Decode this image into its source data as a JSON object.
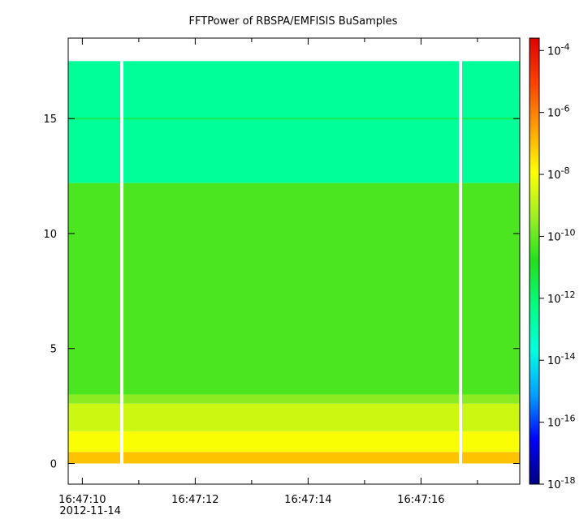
{
  "chart_data": {
    "type": "heatmap",
    "title": "FFTPower of RBSPA/EMFISIS  BuSamples",
    "xlabel": "",
    "ylabel": "",
    "x_range_seconds_past_16_47": [
      9.75,
      17.75
    ],
    "x_ticks": [
      {
        "value": 10,
        "label": "16:47:10",
        "sublabel": "2012-11-14"
      },
      {
        "value": 12,
        "label": "16:47:12"
      },
      {
        "value": 14,
        "label": "16:47:14"
      },
      {
        "value": 16,
        "label": "16:47:16"
      }
    ],
    "x_minor_ticks": [
      11,
      13,
      15,
      17
    ],
    "ylim": [
      -0.9,
      18.5
    ],
    "y_ticks": [
      0,
      5,
      10,
      15
    ],
    "data_extent": {
      "x": [
        9.75,
        17.75
      ],
      "y": [
        0,
        17.5
      ]
    },
    "data_gaps_x": [
      10.7,
      16.7
    ],
    "frequency_bands": [
      {
        "y_from": 0.0,
        "y_to": 0.5,
        "log10_power": -7.0
      },
      {
        "y_from": 0.5,
        "y_to": 1.4,
        "log10_power": -8.0
      },
      {
        "y_from": 1.4,
        "y_to": 2.6,
        "log10_power": -8.7
      },
      {
        "y_from": 2.6,
        "y_to": 3.0,
        "log10_power": -9.6
      },
      {
        "y_from": 3.0,
        "y_to": 12.2,
        "log10_power": -10.3
      },
      {
        "y_from": 12.2,
        "y_to": 17.5,
        "log10_power": -12.6
      }
    ],
    "line_features": [
      {
        "y": 15.0,
        "log10_power": -11.5
      }
    ],
    "colorbar": {
      "scale": "log",
      "range_log10": [
        -18,
        -3.6
      ],
      "tick_labels": [
        "10-4",
        "10-6",
        "10-8",
        "10-10",
        "10-12",
        "10-14",
        "10-16",
        "10-18"
      ],
      "tick_values_log10": [
        -4,
        -6,
        -8,
        -10,
        -12,
        -14,
        -16,
        -18
      ],
      "colors": [
        "#00007f",
        "#0000ff",
        "#00a0ff",
        "#00ffe0",
        "#00ff80",
        "#20e020",
        "#a0f020",
        "#ffff00",
        "#ffa000",
        "#ff4000",
        "#e00000"
      ]
    }
  }
}
